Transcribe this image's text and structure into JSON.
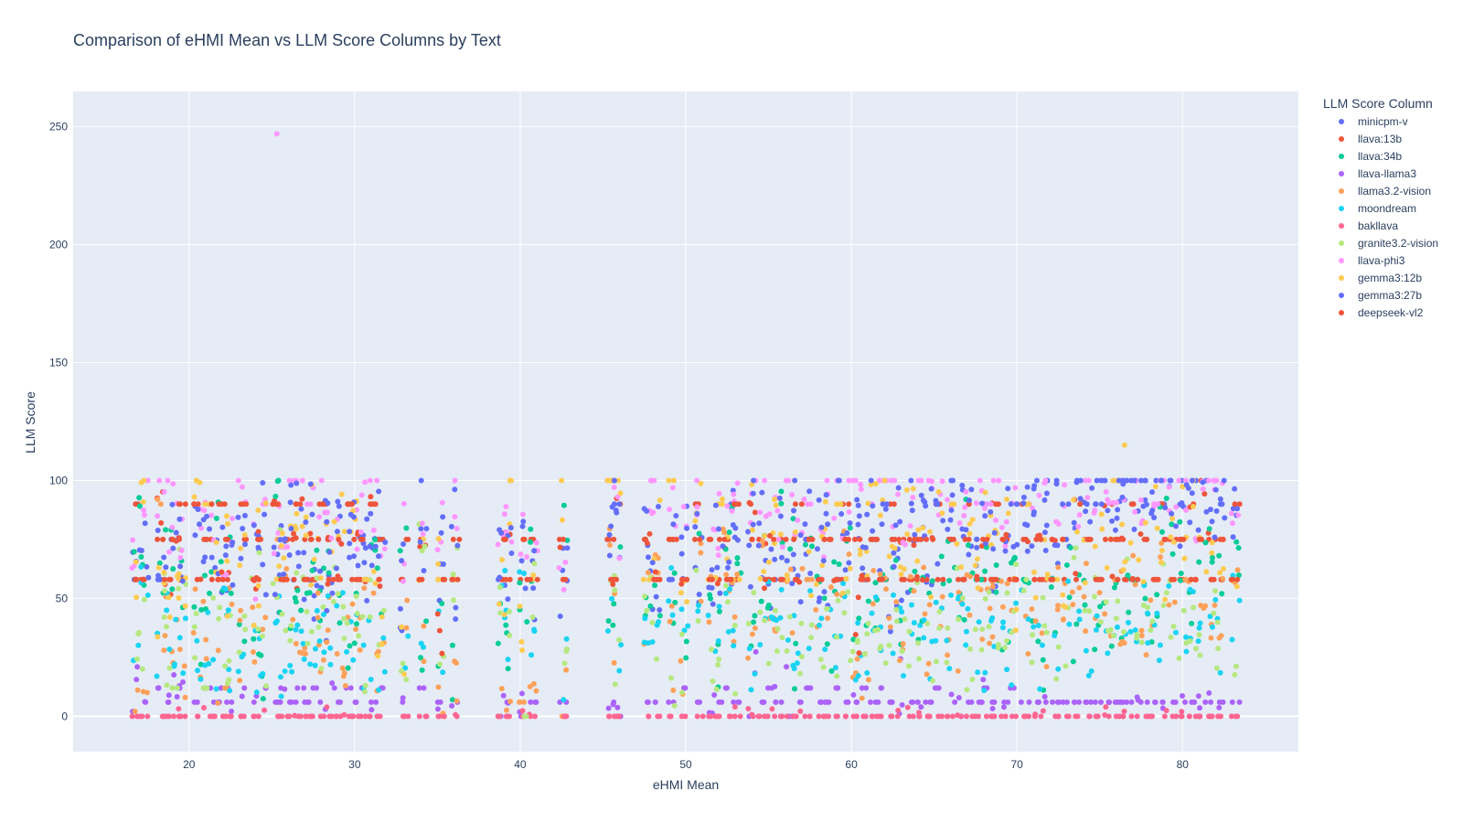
{
  "chart_data": {
    "type": "scatter",
    "title": "Comparison of eHMI Mean vs LLM Score Columns by Text",
    "xlabel": "eHMI Mean",
    "ylabel": "LLM Score",
    "xlim": [
      13,
      87
    ],
    "ylim": [
      -15,
      265
    ],
    "xticks": [
      20,
      30,
      40,
      50,
      60,
      70,
      80
    ],
    "yticks": [
      0,
      50,
      100,
      150,
      200,
      250
    ],
    "grid": true,
    "legend": {
      "title": "LLM Score Column",
      "position": "top-right outside"
    },
    "x_groups": [
      16.8,
      17.3,
      18.3,
      18.7,
      19.2,
      19.6,
      20.5,
      21.1,
      21.6,
      22.1,
      22.4,
      23.2,
      24.0,
      24.4,
      25.3,
      25.7,
      26.3,
      26.7,
      27.2,
      27.6,
      28.1,
      28.6,
      29.1,
      29.6,
      30.1,
      30.5,
      31.1,
      31.6,
      33.0,
      34.1,
      35.2,
      36.1,
      38.9,
      39.3,
      40.2,
      40.8,
      42.6,
      45.5,
      45.9,
      47.7,
      48.2,
      49.2,
      49.9,
      50.8,
      51.6,
      52.1,
      52.6,
      53.1,
      54.0,
      54.6,
      55.2,
      55.6,
      56.3,
      56.8,
      57.4,
      58.1,
      58.6,
      59.2,
      59.7,
      60.3,
      60.8,
      61.4,
      61.9,
      62.5,
      63.0,
      63.6,
      64.2,
      64.7,
      65.3,
      66.0,
      66.6,
      67.1,
      67.7,
      68.2,
      68.7,
      69.3,
      69.8,
      70.5,
      71.1,
      71.6,
      72.3,
      73.0,
      73.6,
      74.3,
      74.9,
      75.5,
      76.0,
      76.5,
      77.1,
      77.7,
      78.3,
      78.8,
      79.4,
      80.0,
      80.6,
      81.2,
      81.8,
      82.3,
      83.2
    ],
    "series": [
      {
        "name": "minicpm-v",
        "color": "#636efa",
        "base_y": [
          68,
          72,
          58,
          75,
          80,
          65,
          78,
          82,
          70,
          55,
          62,
          74,
          80,
          68,
          59,
          66,
          77,
          81,
          63,
          52,
          49,
          71,
          88,
          57,
          64,
          66,
          60,
          75,
          45,
          70,
          62,
          50,
          58,
          60,
          65,
          48,
          54,
          72,
          82,
          66,
          50,
          58,
          70,
          62,
          55,
          60,
          76,
          85,
          70,
          65,
          60,
          58,
          62,
          55,
          72,
          66,
          60,
          58,
          70,
          80,
          62,
          75,
          78,
          55,
          68,
          72,
          80,
          64,
          72,
          100,
          88,
          84,
          78,
          90,
          62,
          74,
          82,
          78,
          92,
          88,
          80,
          75,
          95,
          90,
          95,
          92,
          94,
          100,
          96,
          98,
          95,
          90,
          96,
          92,
          97,
          94,
          95,
          90,
          95
        ]
      },
      {
        "name": "llava:13b",
        "color": "#ef553b",
        "base_y": [
          90,
          58,
          88,
          62,
          75,
          58,
          90,
          75,
          58,
          90,
          58,
          75,
          58,
          75,
          90,
          75,
          58,
          90,
          75,
          58,
          90,
          75,
          58,
          90,
          75,
          58,
          90,
          75,
          58,
          75,
          58,
          75,
          58,
          75,
          58,
          75,
          58,
          75,
          90,
          75,
          58,
          75,
          58,
          90,
          75,
          58,
          75,
          58,
          90,
          75,
          58,
          75,
          58,
          90,
          75,
          58,
          75,
          58,
          90,
          75,
          58,
          75,
          58,
          90,
          75,
          58,
          75,
          58,
          90,
          75,
          58,
          90,
          75,
          58,
          90,
          75,
          58,
          90,
          75,
          58,
          75,
          58,
          90,
          75,
          58,
          90,
          75,
          58,
          90,
          75,
          58,
          90,
          75,
          58,
          90,
          100,
          75,
          58,
          90
        ]
      },
      {
        "name": "llava:34b",
        "color": "#00cc96",
        "base_y": [
          82,
          50,
          55,
          68,
          65,
          62,
          35,
          52,
          78,
          48,
          60,
          40,
          28,
          20,
          84,
          45,
          38,
          60,
          55,
          70,
          48,
          62,
          52,
          36,
          40,
          58,
          62,
          46,
          72,
          30,
          30,
          20,
          28,
          40,
          50,
          60,
          92,
          45,
          62,
          40,
          48,
          52,
          40,
          78,
          45,
          30,
          70,
          60,
          40,
          65,
          52,
          92,
          84,
          30,
          60,
          55,
          38,
          65,
          72,
          50,
          45,
          48,
          58,
          62,
          45,
          55,
          40,
          70,
          56,
          62,
          50,
          72,
          58,
          66,
          62,
          40,
          60,
          58,
          42,
          20,
          46,
          60,
          42,
          56,
          38,
          46,
          62,
          48,
          58,
          52,
          40,
          78,
          65,
          70,
          48,
          62,
          68,
          52,
          70
        ]
      },
      {
        "name": "llava-llama3",
        "color": "#ab63fa",
        "base_y": [
          10,
          6,
          12,
          6,
          8,
          12,
          6,
          12,
          6,
          12,
          6,
          12,
          6,
          12,
          6,
          12,
          6,
          12,
          6,
          12,
          6,
          12,
          6,
          12,
          6,
          12,
          6,
          12,
          6,
          12,
          6,
          6,
          4,
          6,
          8,
          6,
          6,
          6,
          4,
          6,
          6,
          6,
          12,
          6,
          8,
          6,
          12,
          6,
          8,
          6,
          12,
          6,
          8,
          6,
          12,
          6,
          6,
          12,
          6,
          6,
          12,
          6,
          12,
          6,
          8,
          6,
          6,
          6,
          12,
          6,
          8,
          6,
          6,
          12,
          6,
          6,
          12,
          6,
          6,
          6,
          6,
          6,
          6,
          6,
          6,
          6,
          6,
          6,
          6,
          6,
          6,
          6,
          6,
          6,
          6,
          6,
          6,
          6,
          6
        ]
      },
      {
        "name": "llama3.2-vision",
        "color": "#ffa15a",
        "base_y": [
          5,
          20,
          90,
          40,
          30,
          18,
          35,
          42,
          22,
          12,
          40,
          25,
          30,
          48,
          75,
          45,
          38,
          28,
          20,
          34,
          22,
          40,
          30,
          25,
          32,
          40,
          35,
          30,
          32,
          34,
          2,
          20,
          5,
          15,
          6,
          3,
          8,
          88,
          42,
          50,
          62,
          28,
          18,
          56,
          44,
          70,
          52,
          48,
          32,
          62,
          44,
          30,
          52,
          64,
          58,
          38,
          44,
          52,
          60,
          30,
          14,
          46,
          52,
          38,
          30,
          44,
          56,
          28,
          40,
          45,
          38,
          52,
          34,
          48,
          40,
          56,
          52,
          38,
          44,
          30,
          50,
          42,
          60,
          56,
          40,
          52,
          48,
          44,
          50,
          38,
          46,
          56,
          42,
          58,
          48,
          36,
          40,
          46,
          60
        ]
      },
      {
        "name": "moondream",
        "color": "#19d3f3",
        "base_y": [
          40,
          50,
          28,
          40,
          35,
          22,
          30,
          38,
          22,
          45,
          30,
          36,
          22,
          28,
          35,
          25,
          30,
          40,
          28,
          35,
          25,
          32,
          40,
          28,
          35,
          22,
          30,
          25,
          30,
          32,
          34,
          58,
          60,
          32,
          55,
          25,
          20,
          32,
          30,
          28,
          46,
          52,
          38,
          42,
          36,
          46,
          40,
          30,
          28,
          32,
          44,
          36,
          40,
          28,
          42,
          36,
          40,
          32,
          38,
          30,
          28,
          46,
          40,
          34,
          30,
          46,
          38,
          30,
          44,
          32,
          40,
          36,
          30,
          26,
          44,
          34,
          28,
          38,
          42,
          30,
          36,
          40,
          30,
          28,
          46,
          24,
          40,
          34,
          42,
          36,
          30,
          40,
          44,
          38,
          42,
          30,
          46,
          36,
          42
        ]
      },
      {
        "name": "bakllava",
        "color": "#ff6692",
        "base_y": [
          0,
          0,
          0,
          0,
          0,
          0,
          0,
          0,
          0,
          0,
          0,
          0,
          0,
          0,
          0,
          0,
          0,
          0,
          0,
          0,
          0,
          0,
          0,
          0,
          0,
          0,
          0,
          0,
          0,
          0,
          0,
          0,
          0,
          0,
          0,
          0,
          0,
          0,
          0,
          0,
          0,
          0,
          0,
          0,
          0,
          0,
          0,
          0,
          0,
          0,
          0,
          0,
          0,
          0,
          0,
          0,
          0,
          0,
          0,
          0,
          0,
          0,
          0,
          0,
          0,
          0,
          0,
          0,
          0,
          0,
          0,
          0,
          0,
          0,
          0,
          0,
          0,
          0,
          0,
          0,
          0,
          0,
          0,
          0,
          0,
          0,
          0,
          0,
          0,
          0,
          0,
          0,
          0,
          0,
          0,
          0,
          0,
          0,
          0
        ]
      },
      {
        "name": "granite3.2-vision",
        "color": "#b6e880",
        "base_y": [
          20,
          30,
          50,
          22,
          12,
          62,
          32,
          12,
          42,
          22,
          30,
          40,
          50,
          20,
          62,
          42,
          50,
          58,
          32,
          48,
          38,
          68,
          50,
          30,
          42,
          30,
          40,
          28,
          26,
          70,
          22,
          52,
          42,
          42,
          2,
          48,
          20,
          42,
          32,
          48,
          30,
          22,
          20,
          56,
          30,
          22,
          48,
          20,
          52,
          44,
          32,
          22,
          30,
          26,
          44,
          20,
          36,
          30,
          40,
          22,
          32,
          48,
          30,
          44,
          36,
          30,
          40,
          28,
          40,
          32,
          46,
          24,
          30,
          44,
          40,
          36,
          48,
          42,
          30,
          38,
          28,
          40,
          62,
          38,
          52,
          40,
          36,
          48,
          30,
          42,
          38,
          56,
          44,
          36,
          46,
          30,
          40,
          32,
          22
        ]
      },
      {
        "name": "llava-phi3",
        "color": "#ff97ff",
        "base_y": [
          74,
          98,
          92,
          82,
          88,
          78,
          88,
          92,
          85,
          72,
          80,
          94,
          62,
          90,
          82,
          78,
          98,
          88,
          90,
          86,
          94,
          92,
          80,
          90,
          84,
          82,
          92,
          76,
          74,
          88,
          80,
          88,
          84,
          82,
          78,
          80,
          68,
          88,
          82,
          92,
          88,
          84,
          80,
          98,
          92,
          82,
          88,
          96,
          88,
          84,
          82,
          80,
          92,
          76,
          90,
          84,
          98,
          96,
          88,
          92,
          84,
          90,
          96,
          88,
          82,
          94,
          96,
          92,
          88,
          96,
          80,
          92,
          88,
          90,
          98,
          84,
          96,
          90,
          92,
          94,
          88,
          96,
          98,
          92,
          96,
          98,
          94,
          98,
          96,
          92,
          90,
          98,
          96,
          94,
          92,
          98,
          96,
          92,
          94
        ]
      },
      {
        "name": "gemma3:12b",
        "color": "#fecb52",
        "base_y": [
          56,
          99,
          48,
          52,
          66,
          44,
          95,
          90,
          62,
          74,
          50,
          80,
          44,
          96,
          66,
          74,
          92,
          88,
          70,
          80,
          62,
          84,
          76,
          68,
          72,
          58,
          60,
          34,
          30,
          68,
          56,
          58,
          56,
          97,
          40,
          58,
          100,
          95,
          88,
          58,
          80,
          95,
          62,
          84,
          58,
          90,
          72,
          58,
          94,
          70,
          66,
          80,
          58,
          88,
          64,
          74,
          82,
          90,
          64,
          80,
          72,
          88,
          94,
          76,
          62,
          86,
          78,
          68,
          96,
          90,
          72,
          84,
          70,
          92,
          74,
          80,
          56,
          90,
          54,
          68,
          58,
          50,
          88,
          60,
          72,
          66,
          115,
          82,
          70,
          76,
          92,
          60,
          84,
          78,
          96,
          70,
          82,
          72,
          66
        ]
      },
      {
        "name": "gemma3:27b",
        "color": "#636efa",
        "base_y": [
          62,
          74,
          70,
          66,
          74,
          72,
          78,
          80,
          62,
          78,
          68,
          76,
          74,
          80,
          62,
          74,
          80,
          76,
          82,
          74,
          80,
          76,
          72,
          78,
          80,
          76,
          66,
          84,
          74,
          92,
          80,
          80,
          72,
          76,
          78,
          68,
          66,
          84,
          90,
          68,
          74,
          80,
          76,
          86,
          78,
          82,
          74,
          80,
          86,
          80,
          76,
          82,
          78,
          86,
          80,
          76,
          84,
          88,
          80,
          84,
          78,
          86,
          90,
          82,
          84,
          88,
          80,
          86,
          90,
          84,
          88,
          86,
          82,
          80,
          88,
          84,
          90,
          88,
          94,
          96,
          92,
          90,
          94,
          92,
          90,
          96,
          98,
          94,
          92,
          96,
          94,
          98,
          96,
          92,
          96,
          98,
          94,
          96,
          92
        ]
      },
      {
        "name": "deepseek-vl2",
        "color": "#ef553b",
        "base_y": [
          58,
          58,
          75,
          58,
          75,
          90,
          58,
          75,
          90,
          58,
          75,
          90,
          58,
          75,
          90,
          58,
          75,
          90,
          58,
          75,
          90,
          58,
          75,
          90,
          58,
          75,
          90,
          58,
          75,
          58,
          37,
          58,
          75,
          58,
          75,
          58,
          75,
          58,
          58,
          75,
          58,
          75,
          58,
          75,
          58,
          75,
          58,
          90,
          75,
          58,
          75,
          58,
          75,
          58,
          75,
          58,
          75,
          58,
          75,
          40,
          58,
          75,
          58,
          75,
          58,
          75,
          58,
          75,
          58,
          75,
          58,
          75,
          58,
          75,
          58,
          75,
          58,
          75,
          58,
          75,
          58,
          75,
          58,
          75,
          58,
          75,
          58,
          75,
          58,
          75,
          58,
          75,
          58,
          75,
          58,
          75,
          58,
          75,
          58
        ]
      }
    ],
    "outliers": [
      {
        "series": "llava-phi3",
        "x": 25.3,
        "y": 247
      },
      {
        "series": "gemma3:12b",
        "x": 76.5,
        "y": 115
      }
    ]
  }
}
